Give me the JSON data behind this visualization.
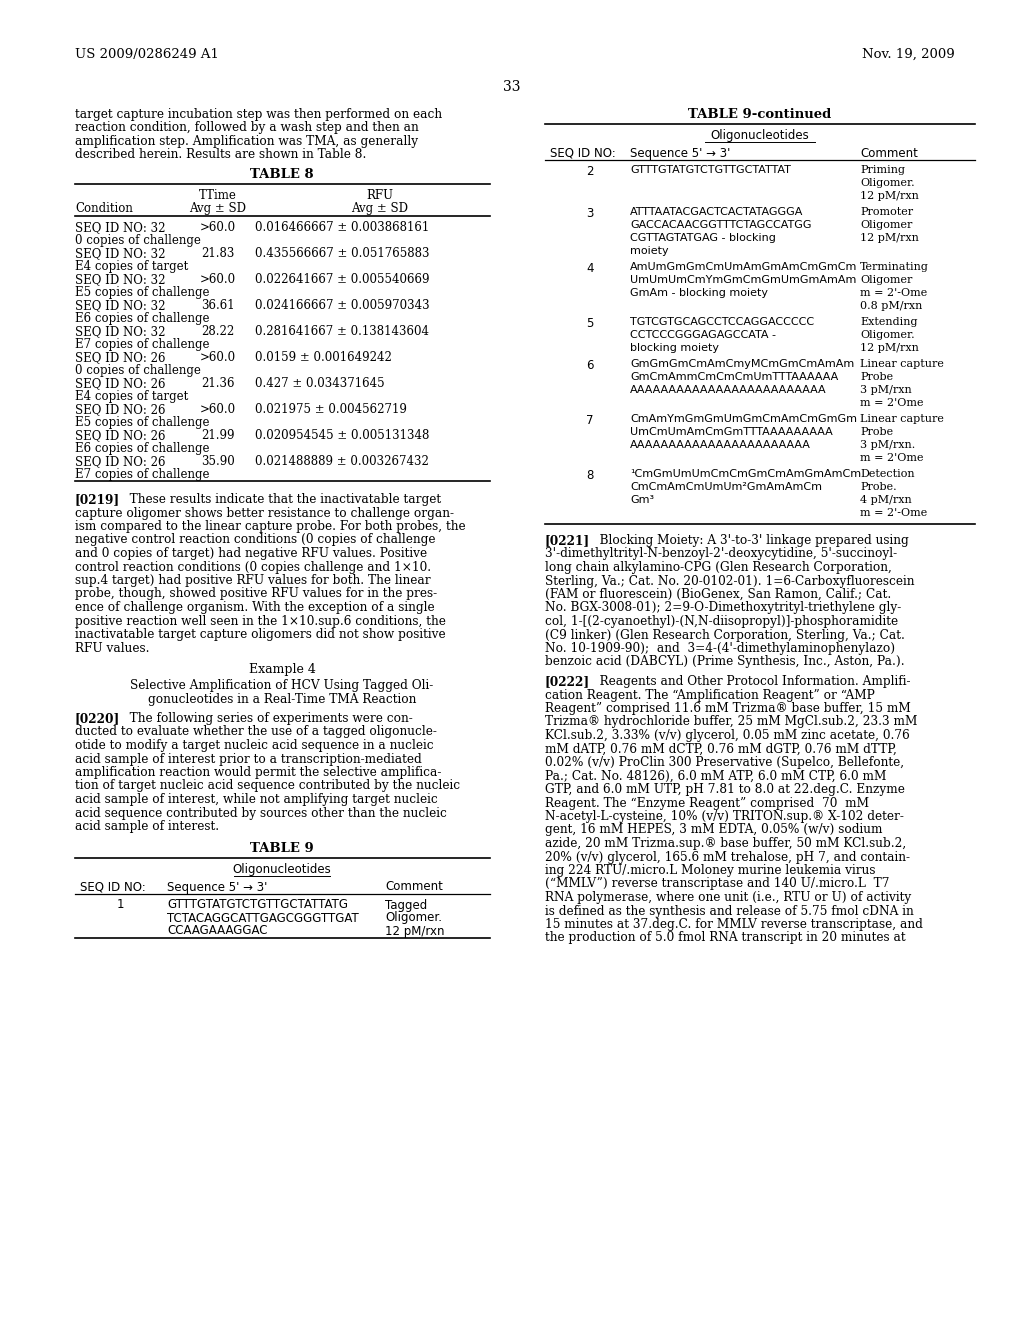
{
  "background_color": "#ffffff",
  "header_left": "US 2009/0286249 A1",
  "header_right": "Nov. 19, 2009",
  "page_number": "33",
  "left_col": {
    "intro_text": [
      "target capture incubation step was then performed on each",
      "reaction condition, followed by a wash step and then an",
      "amplification step. Amplification was TMA, as generally",
      "described herein. Results are shown in Table 8."
    ],
    "table8_title": "TABLE 8",
    "table8_rows": [
      [
        "SEQ ID NO: 32",
        ">60.0",
        "0.016466667 ± 0.003868161"
      ],
      [
        "0 copies of challenge",
        "",
        ""
      ],
      [
        "SEQ ID NO: 32",
        "21.83",
        "0.435566667 ± 0.051765883"
      ],
      [
        "E4 copies of target",
        "",
        ""
      ],
      [
        "SEQ ID NO: 32",
        ">60.0",
        "0.022641667 ± 0.005540669"
      ],
      [
        "E5 copies of challenge",
        "",
        ""
      ],
      [
        "SEQ ID NO: 32",
        "36.61",
        "0.024166667 ± 0.005970343"
      ],
      [
        "E6 copies of challenge",
        "",
        ""
      ],
      [
        "SEQ ID NO: 32",
        "28.22",
        "0.281641667 ± 0.138143604"
      ],
      [
        "E7 copies of challenge",
        "",
        ""
      ],
      [
        "SEQ ID NO: 26",
        ">60.0",
        "0.0159 ± 0.001649242"
      ],
      [
        "0 copies of challenge",
        "",
        ""
      ],
      [
        "SEQ ID NO: 26",
        "21.36",
        "0.427 ± 0.034371645"
      ],
      [
        "E4 copies of target",
        "",
        ""
      ],
      [
        "SEQ ID NO: 26",
        ">60.0",
        "0.021975 ± 0.004562719"
      ],
      [
        "E5 copies of challenge",
        "",
        ""
      ],
      [
        "SEQ ID NO: 26",
        "21.99",
        "0.020954545 ± 0.005131348"
      ],
      [
        "E6 copies of challenge",
        "",
        ""
      ],
      [
        "SEQ ID NO: 26",
        "35.90",
        "0.021488889 ± 0.003267432"
      ],
      [
        "E7 copies of challenge",
        "",
        ""
      ]
    ],
    "para0219": [
      "[0219]   These results indicate that the inactivatable target",
      "capture oligomer shows better resistance to challenge organ-",
      "ism compared to the linear capture probe. For both probes, the",
      "negative control reaction conditions (0 copies of challenge",
      "and 0 copies of target) had negative RFU values. Positive",
      "control reaction conditions (0 copies challenge and 1×10.",
      "sup.4 target) had positive RFU values for both. The linear",
      "probe, though, showed positive RFU values for in the pres-",
      "ence of challenge organism. With the exception of a single",
      "positive reaction well seen in the 1×10.sup.6 conditions, the",
      "inactivatable target capture oligomers did not show positive",
      "RFU values."
    ],
    "example4_title": "Example 4",
    "example4_subtitle": [
      "Selective Amplification of HCV Using Tagged Oli-",
      "gonucleotides in a Real-Time TMA Reaction"
    ],
    "para0220": [
      "[0220]   The following series of experiments were con-",
      "ducted to evaluate whether the use of a tagged oligonucle-",
      "otide to modify a target nucleic acid sequence in a nucleic",
      "acid sample of interest prior to a transcription-mediated",
      "amplification reaction would permit the selective amplifica-",
      "tion of target nucleic acid sequence contributed by the nucleic",
      "acid sample of interest, while not amplifying target nucleic",
      "acid sequence contributed by sources other than the nucleic",
      "acid sample of interest."
    ],
    "table9_title": "TABLE 9",
    "table9_subtitle": "Oligonucleotides",
    "table9_seq_rows": [
      [
        "1",
        "GTTTGTATGTCTGTTGCTATTATG",
        "Tagged"
      ],
      [
        "",
        "TCTACAGGCATTGAGCGGGTTGAT",
        "Oligomer."
      ],
      [
        "",
        "CCAAGAAAGGAC",
        "12 pM/rxn"
      ]
    ]
  },
  "right_col": {
    "table9c_title": "TABLE 9-continued",
    "table9c_subtitle": "Oligonucleotides",
    "table9c_rows": [
      {
        "seq": "2",
        "seq_lines": [
          "GTTTGTATGTCTGTTGCTATTAT"
        ],
        "comment_lines": [
          "Priming",
          "Oligomer.",
          "12 pM/rxn"
        ]
      },
      {
        "seq": "3",
        "seq_lines": [
          "ATTTAATACGACTCACTATAGGGA",
          "GACCACAACGGTTTCTAGCCATGG",
          "CGTTAGTATGAG - blocking",
          "moiety"
        ],
        "comment_lines": [
          "Promoter",
          "Oligomer",
          "12 pM/rxn"
        ]
      },
      {
        "seq": "4",
        "seq_lines": [
          "AmUmGmGmCmUmAmGmAmCmGmCm",
          "UmUmUmCmYmGmCmGmUmGmAmAm",
          "GmAm - blocking moiety"
        ],
        "comment_lines": [
          "Terminating",
          "Oligomer",
          "m = 2'-Ome",
          "0.8 pM/rxn"
        ]
      },
      {
        "seq": "5",
        "seq_lines": [
          "TGTCGTGCAGCCTCCAGGACCCCC",
          "CCTCCCGGGAGAGCCATA -",
          "blocking moiety"
        ],
        "comment_lines": [
          "Extending",
          "Oligomer.",
          "12 pM/rxn"
        ]
      },
      {
        "seq": "6",
        "seq_lines": [
          "GmGmGmCmAmCmyMCmGmCmAmAm",
          "GmCmAmmCmCmCmUmTTTAAAAAA",
          "AAAAAAAAAAAAAAAAAAAAAAAAA"
        ],
        "comment_lines": [
          "Linear capture",
          "Probe",
          "3 pM/rxn",
          "m = 2'Ome"
        ]
      },
      {
        "seq": "7",
        "seq_lines": [
          "CmAmYmGmGmUmGmCmAmCmGmGm",
          "UmCmUmAmCmGmTTTAAAAAAAAA",
          "AAAAAAAAAAAAAAAAAAAAAAA"
        ],
        "comment_lines": [
          "Linear capture",
          "Probe",
          "3 pM/rxn.",
          "m = 2'Ome"
        ]
      },
      {
        "seq": "8",
        "seq_lines": [
          "¹CmGmUmUmCmCmGmCmAmGmAmCm",
          "CmCmAmCmUmUm²GmAmAmCm",
          "Gm³"
        ],
        "comment_lines": [
          "Detection",
          "Probe.",
          "4 pM/rxn",
          "m = 2'-Ome"
        ]
      }
    ],
    "para0221": [
      "[0221]   Blocking Moiety: A 3'-to-3' linkage prepared using",
      "3'-dimethyltrityl-N-benzoyl-2'-deoxycytidine, 5'-succinoyl-",
      "long chain alkylamino-CPG (Glen Research Corporation,",
      "Sterling, Va.; Cat. No. 20-0102-01). 1=6-Carboxyfluorescein",
      "(FAM or fluorescein) (BioGenex, San Ramon, Calif.; Cat.",
      "No. BGX-3008-01); 2=9-O-Dimethoxytrityl-triethylene gly-",
      "col, 1-[(2-cyanoethyl)-(N,N-diisopropyl)]-phosphoramidite",
      "(C9 linker) (Glen Research Corporation, Sterling, Va.; Cat.",
      "No. 10-1909-90);  and  3=4-(4'-dimethylaminophenylazo)",
      "benzoic acid (DABCYL) (Prime Synthesis, Inc., Aston, Pa.)."
    ],
    "para0222": [
      "[0222]   Reagents and Other Protocol Information. Amplifi-",
      "cation Reagent. The “Amplification Reagent” or “AMP",
      "Reagent” comprised 11.6 mM Trizma® base buffer, 15 mM",
      "Trizma® hydrochloride buffer, 25 mM MgCl.sub.2, 23.3 mM",
      "KCl.sub.2, 3.33% (v/v) glycerol, 0.05 mM zinc acetate, 0.76",
      "mM dATP, 0.76 mM dCTP, 0.76 mM dGTP, 0.76 mM dTTP,",
      "0.02% (v/v) ProClin 300 Preservative (Supelco, Bellefonte,",
      "Pa.; Cat. No. 48126), 6.0 mM ATP, 6.0 mM CTP, 6.0 mM",
      "GTP, and 6.0 mM UTP, pH 7.81 to 8.0 at 22.deg.C. Enzyme",
      "Reagent. The “Enzyme Reagent” comprised  70  mM",
      "N-acetyl-L-cysteine, 10% (v/v) TRITON.sup.® X-102 deter-",
      "gent, 16 mM HEPES, 3 mM EDTA, 0.05% (w/v) sodium",
      "azide, 20 mM Trizma.sup.® base buffer, 50 mM KCl.sub.2,",
      "20% (v/v) glycerol, 165.6 mM trehalose, pH 7, and contain-",
      "ing 224 RTU/.micro.L Moloney murine leukemia virus",
      "(“MMLV”) reverse transcriptase and 140 U/.micro.L  T7",
      "RNA polymerase, where one unit (i.e., RTU or U) of activity",
      "is defined as the synthesis and release of 5.75 fmol cDNA in",
      "15 minutes at 37.deg.C. for MMLV reverse transcriptase, and",
      "the production of 5.0 fmol RNA transcript in 20 minutes at"
    ]
  }
}
